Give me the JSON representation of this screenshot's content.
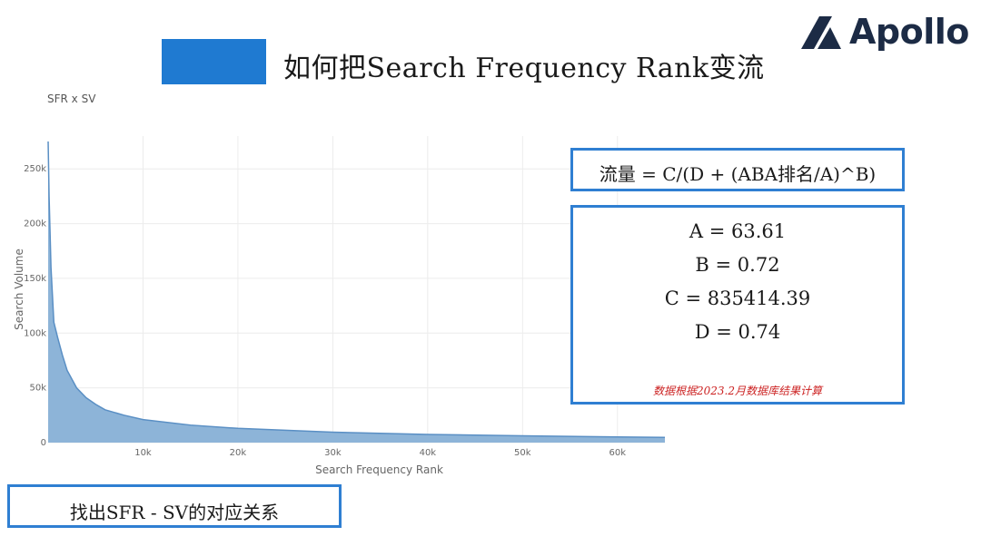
{
  "slide": {
    "title": "如何把Search Frequency Rank变流",
    "logo_text": "Apollo",
    "accent_color": "#1f7ad1"
  },
  "formula": {
    "text": "流量 = C/(D + (ABA排名/A)^B)"
  },
  "params": {
    "a": "A = 63.61",
    "b": "B  = 0.72",
    "c": "C = 835414.39",
    "d": "D = 0.74",
    "note": "数据根据2023.2月数据库结果计算"
  },
  "footer": {
    "label": "找出SFR - SV的对应关系"
  },
  "chart_data": {
    "type": "area",
    "title": "SFR x SV",
    "xlabel": "Search Frequency Rank",
    "ylabel": "Search Volume",
    "xlim": [
      0,
      65000
    ],
    "ylim": [
      0,
      280000
    ],
    "xticks": [
      10000,
      20000,
      30000,
      40000,
      50000,
      60000
    ],
    "xtick_labels": [
      "10k",
      "20k",
      "30k",
      "40k",
      "50k",
      "60k"
    ],
    "yticks": [
      0,
      50000,
      100000,
      150000,
      200000,
      250000
    ],
    "ytick_labels": [
      "0",
      "50k",
      "100k",
      "150k",
      "200k",
      "250k"
    ],
    "x": [
      1,
      100,
      300,
      600,
      1000,
      1500,
      2000,
      3000,
      4000,
      5000,
      6000,
      8000,
      10000,
      15000,
      20000,
      30000,
      40000,
      50000,
      60000,
      65000
    ],
    "y": [
      275000,
      225000,
      160000,
      110000,
      96000,
      80000,
      66000,
      50000,
      41000,
      35000,
      30000,
      25000,
      21000,
      16000,
      13000,
      9500,
      7500,
      6200,
      5200,
      4800
    ],
    "fill_color": "#8db4d8",
    "line_color": "#5a8fc4",
    "grid": true
  }
}
